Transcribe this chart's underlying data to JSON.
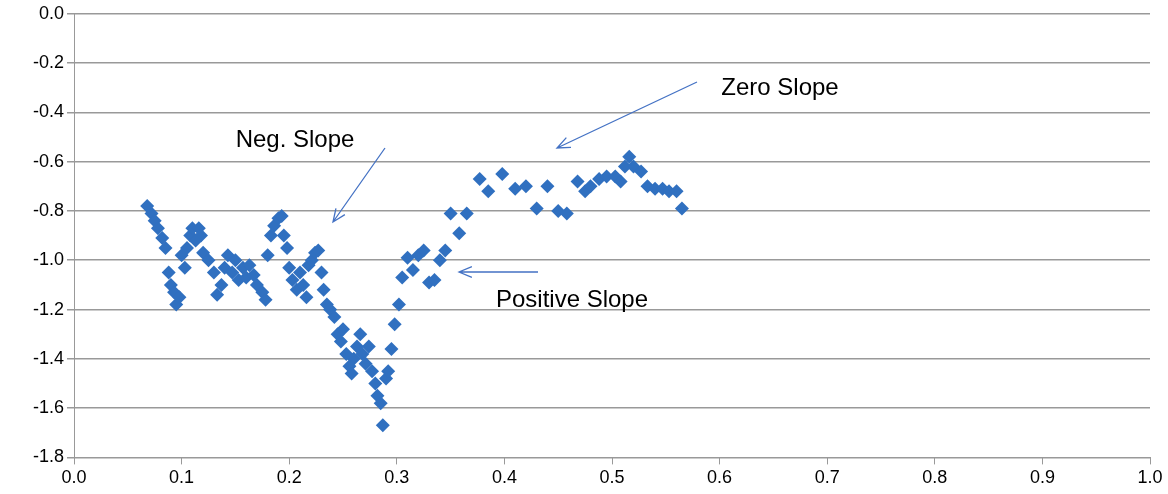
{
  "chart_data": {
    "type": "scatter",
    "xlim": [
      0,
      1
    ],
    "xticks": [
      {
        "value": 0,
        "label": "0.0"
      },
      {
        "value": 0.1,
        "label": "0.1"
      },
      {
        "value": 0.2,
        "label": "0.2"
      },
      {
        "value": 0.3,
        "label": "0.3"
      },
      {
        "value": 0.4,
        "label": "0.4"
      },
      {
        "value": 0.5,
        "label": "0.5"
      },
      {
        "value": 0.6,
        "label": "0.6"
      },
      {
        "value": 0.7,
        "label": "0.7"
      },
      {
        "value": 0.8,
        "label": "0.8"
      },
      {
        "value": 0.9,
        "label": "0.9"
      },
      {
        "value": 1,
        "label": "1.0"
      }
    ],
    "ylim": [
      -1.8,
      0
    ],
    "yticks": [
      {
        "value": -1.8,
        "label": "-1.8"
      },
      {
        "value": -1.6,
        "label": "-1.6"
      },
      {
        "value": -1.4,
        "label": "-1.4"
      },
      {
        "value": -1.2,
        "label": "-1.2"
      },
      {
        "value": -1,
        "label": "-1.0"
      },
      {
        "value": -0.8,
        "label": "-0.8"
      },
      {
        "value": -0.6,
        "label": "-0.6"
      },
      {
        "value": -0.4,
        "label": "-0.4"
      },
      {
        "value": -0.2,
        "label": "-0.2"
      },
      {
        "value": 0,
        "label": "0.0"
      }
    ],
    "grid": "y",
    "legend": false,
    "marker": "diamond",
    "annotations": [
      "Zero Slope",
      "Neg. Slope",
      "Positive Slope"
    ],
    "series": [
      {
        "color": "#3070c0",
        "x": [
          0.068,
          0.072,
          0.075,
          0.078,
          0.082,
          0.085,
          0.088,
          0.09,
          0.093,
          0.095,
          0.098,
          0.1,
          0.103,
          0.105,
          0.108,
          0.11,
          0.113,
          0.116,
          0.118,
          0.12,
          0.125,
          0.13,
          0.133,
          0.137,
          0.14,
          0.143,
          0.147,
          0.15,
          0.153,
          0.157,
          0.16,
          0.163,
          0.167,
          0.17,
          0.175,
          0.178,
          0.18,
          0.183,
          0.186,
          0.19,
          0.193,
          0.195,
          0.198,
          0.2,
          0.203,
          0.207,
          0.21,
          0.213,
          0.216,
          0.218,
          0.221,
          0.224,
          0.227,
          0.23,
          0.232,
          0.235,
          0.238,
          0.242,
          0.245,
          0.248,
          0.25,
          0.253,
          0.256,
          0.258,
          0.26,
          0.263,
          0.266,
          0.268,
          0.271,
          0.274,
          0.277,
          0.28,
          0.282,
          0.285,
          0.287,
          0.29,
          0.292,
          0.295,
          0.298,
          0.302,
          0.305,
          0.31,
          0.315,
          0.32,
          0.325,
          0.33,
          0.335,
          0.34,
          0.345,
          0.35,
          0.358,
          0.365,
          0.377,
          0.385,
          0.398,
          0.41,
          0.42,
          0.43,
          0.44,
          0.45,
          0.458,
          0.468,
          0.475,
          0.48,
          0.488,
          0.495,
          0.503,
          0.508,
          0.512,
          0.516,
          0.52,
          0.527,
          0.533,
          0.54,
          0.547,
          0.553,
          0.56,
          0.565
        ],
        "values": [
          -0.78,
          -0.81,
          -0.84,
          -0.87,
          -0.91,
          -0.95,
          -1.05,
          -1.1,
          -1.13,
          -1.18,
          -1.15,
          -0.98,
          -1.03,
          -0.95,
          -0.9,
          -0.87,
          -0.92,
          -0.87,
          -0.9,
          -0.97,
          -1.0,
          -1.05,
          -1.14,
          -1.1,
          -1.03,
          -0.98,
          -1.05,
          -1.0,
          -1.08,
          -1.03,
          -1.07,
          -1.02,
          -1.06,
          -1.1,
          -1.13,
          -1.16,
          -0.98,
          -0.9,
          -0.86,
          -0.83,
          -0.82,
          -0.9,
          -0.95,
          -1.03,
          -1.08,
          -1.12,
          -1.05,
          -1.1,
          -1.15,
          -1.02,
          -1.0,
          -0.97,
          -0.96,
          -1.05,
          -1.12,
          -1.18,
          -1.2,
          -1.23,
          -1.3,
          -1.33,
          -1.28,
          -1.38,
          -1.43,
          -1.46,
          -1.4,
          -1.35,
          -1.3,
          -1.38,
          -1.42,
          -1.35,
          -1.45,
          -1.5,
          -1.55,
          -1.58,
          -1.67,
          -1.48,
          -1.45,
          -1.36,
          -1.26,
          -1.18,
          -1.07,
          -0.99,
          -1.04,
          -0.98,
          -0.96,
          -1.09,
          -1.08,
          -1.0,
          -0.96,
          -0.81,
          -0.89,
          -0.81,
          -0.67,
          -0.72,
          -0.65,
          -0.71,
          -0.7,
          -0.79,
          -0.7,
          -0.8,
          -0.81,
          -0.68,
          -0.72,
          -0.7,
          -0.67,
          -0.66,
          -0.66,
          -0.68,
          -0.62,
          -0.58,
          -0.62,
          -0.64,
          -0.7,
          -0.71,
          -0.71,
          -0.72,
          -0.72,
          -0.79
        ]
      }
    ]
  }
}
